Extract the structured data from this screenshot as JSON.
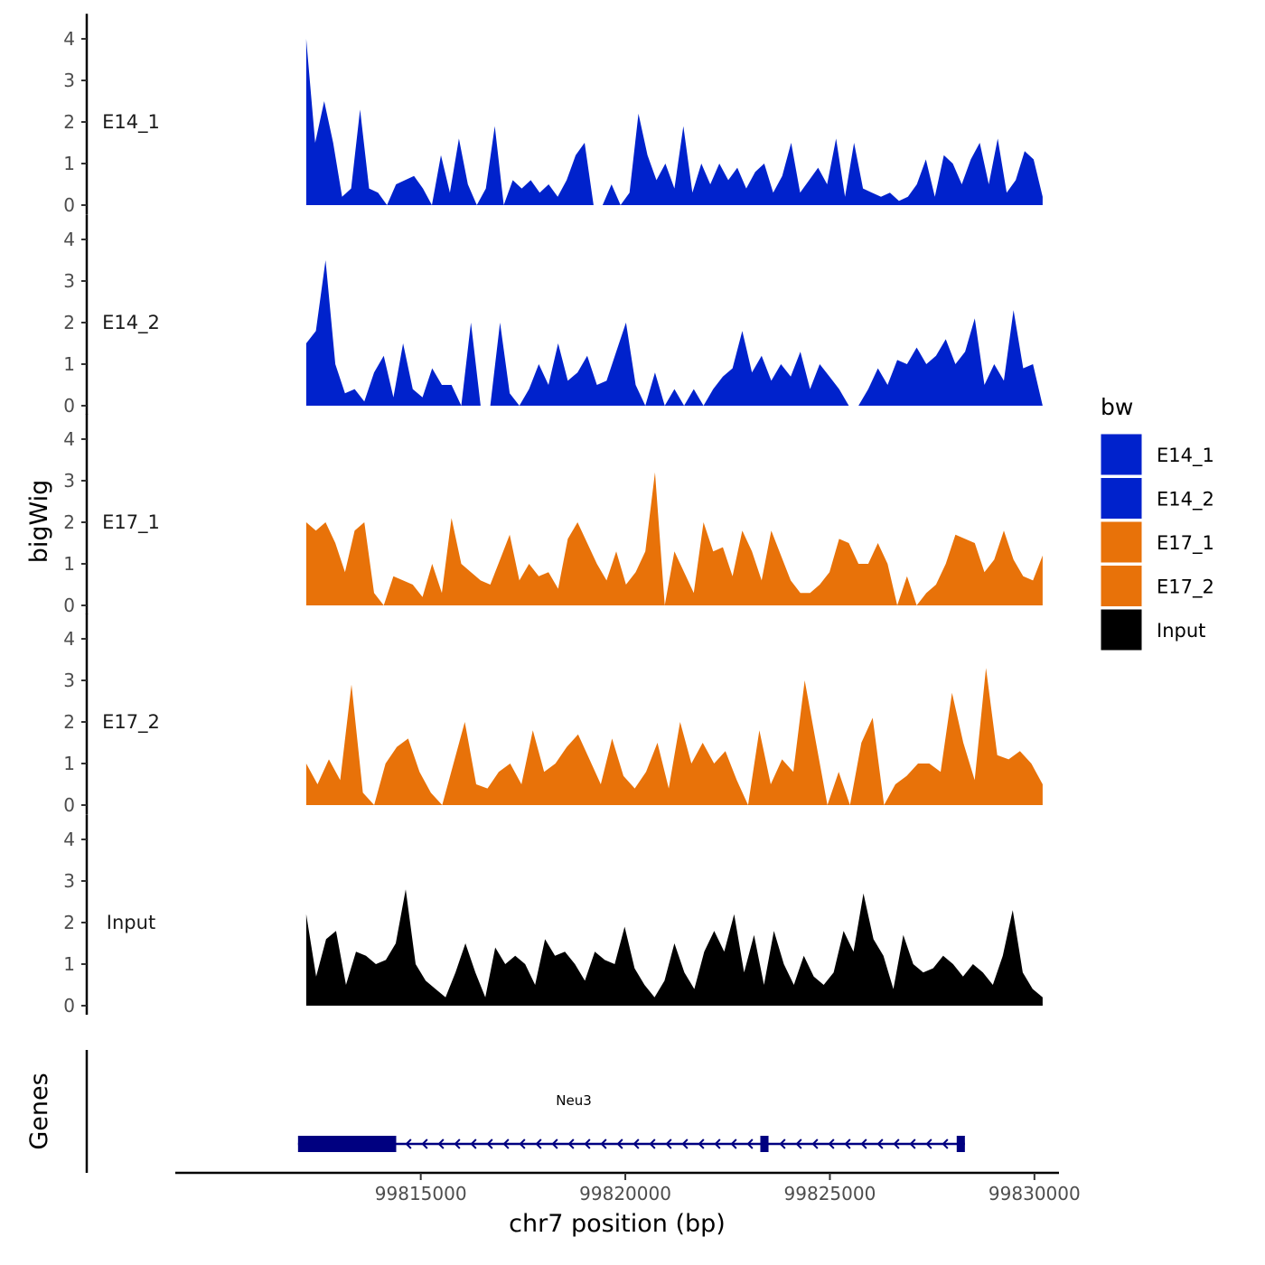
{
  "chart_data": {
    "type": "area",
    "xlabel": "chr7 position (bp)",
    "ylabel": "bigWig",
    "genes_label": "Genes",
    "xlim": [
      99809000,
      99830600
    ],
    "x_ticks": [
      99815000,
      99820000,
      99825000,
      99830000
    ],
    "x_tick_labels": [
      "99815000",
      "99820000",
      "99825000",
      "99830000"
    ],
    "ylim": [
      0,
      4.3
    ],
    "y_ticks": [
      0,
      1,
      2,
      3,
      4
    ],
    "y_tick_labels": [
      "0",
      "1",
      "2",
      "3",
      "4"
    ],
    "colors": {
      "E14_1": "#0022CC",
      "E14_2": "#0022CC",
      "E17_1": "#E87209",
      "E17_2": "#E87209",
      "Input": "#000000",
      "gene": "#000080",
      "axis": "#000000"
    },
    "legend": {
      "title": "bw",
      "position": "right",
      "entries": [
        "E14_1",
        "E14_2",
        "E17_1",
        "E17_2",
        "Input"
      ]
    },
    "series": [
      {
        "name": "E14_1",
        "x_start": 99812200,
        "x_end": 99830200,
        "values": [
          4.0,
          1.5,
          2.5,
          1.5,
          0.2,
          0.4,
          2.3,
          0.4,
          0.3,
          0.0,
          0.5,
          0.6,
          0.7,
          0.4,
          0.0,
          1.2,
          0.3,
          1.6,
          0.5,
          0.0,
          0.4,
          1.9,
          0.0,
          0.6,
          0.4,
          0.6,
          0.3,
          0.5,
          0.2,
          0.6,
          1.2,
          1.5,
          0.0,
          0.0,
          0.5,
          0.0,
          0.3,
          2.2,
          1.2,
          0.6,
          1.0,
          0.4,
          1.9,
          0.3,
          1.0,
          0.5,
          1.0,
          0.6,
          0.9,
          0.4,
          0.8,
          1.0,
          0.3,
          0.7,
          1.5,
          0.3,
          0.6,
          0.9,
          0.5,
          1.6,
          0.2,
          1.5,
          0.4,
          0.3,
          0.2,
          0.3,
          0.1,
          0.2,
          0.5,
          1.1,
          0.2,
          1.2,
          1.0,
          0.5,
          1.1,
          1.5,
          0.5,
          1.6,
          0.3,
          0.6,
          1.3,
          1.1,
          0.2
        ]
      },
      {
        "name": "E14_2",
        "x_start": 99812200,
        "x_end": 99830200,
        "values": [
          1.5,
          1.8,
          3.5,
          1.0,
          0.3,
          0.4,
          0.1,
          0.8,
          1.2,
          0.2,
          1.5,
          0.4,
          0.2,
          0.9,
          0.5,
          0.5,
          0.0,
          2.0,
          0.0,
          0.0,
          2.0,
          0.3,
          0.0,
          0.4,
          1.0,
          0.5,
          1.5,
          0.6,
          0.8,
          1.2,
          0.5,
          0.6,
          1.3,
          2.0,
          0.5,
          0.0,
          0.8,
          0.0,
          0.4,
          0.0,
          0.4,
          0.0,
          0.4,
          0.7,
          0.9,
          1.8,
          0.8,
          1.2,
          0.6,
          1.0,
          0.7,
          1.3,
          0.4,
          1.0,
          0.7,
          0.4,
          0.0,
          0.0,
          0.4,
          0.9,
          0.5,
          1.1,
          1.0,
          1.4,
          1.0,
          1.2,
          1.6,
          1.0,
          1.3,
          2.1,
          0.5,
          1.0,
          0.6,
          2.3,
          0.9,
          1.0,
          0.0
        ]
      },
      {
        "name": "E17_1",
        "x_start": 99812200,
        "x_end": 99830200,
        "values": [
          2.0,
          1.8,
          2.0,
          1.5,
          0.8,
          1.8,
          2.0,
          0.3,
          0.0,
          0.7,
          0.6,
          0.5,
          0.2,
          1.0,
          0.3,
          2.1,
          1.0,
          0.8,
          0.6,
          0.5,
          1.1,
          1.7,
          0.6,
          1.0,
          0.7,
          0.8,
          0.4,
          1.6,
          2.0,
          1.5,
          1.0,
          0.6,
          1.3,
          0.5,
          0.8,
          1.3,
          3.2,
          0.0,
          1.3,
          0.8,
          0.3,
          2.0,
          1.3,
          1.4,
          0.7,
          1.8,
          1.3,
          0.6,
          1.8,
          1.2,
          0.6,
          0.3,
          0.3,
          0.5,
          0.8,
          1.6,
          1.5,
          1.0,
          1.0,
          1.5,
          1.0,
          0.0,
          0.7,
          0.0,
          0.3,
          0.5,
          1.0,
          1.7,
          1.6,
          1.5,
          0.8,
          1.1,
          1.8,
          1.1,
          0.7,
          0.6,
          1.2
        ]
      },
      {
        "name": "E17_2",
        "x_start": 99812200,
        "x_end": 99830200,
        "values": [
          1.0,
          0.5,
          1.1,
          0.6,
          2.9,
          0.3,
          0.0,
          1.0,
          1.4,
          1.6,
          0.8,
          0.3,
          0.0,
          1.0,
          2.0,
          0.5,
          0.4,
          0.8,
          1.0,
          0.5,
          1.8,
          0.8,
          1.0,
          1.4,
          1.7,
          1.1,
          0.5,
          1.6,
          0.7,
          0.4,
          0.8,
          1.5,
          0.4,
          2.0,
          1.0,
          1.5,
          1.0,
          1.3,
          0.6,
          0.0,
          1.8,
          0.5,
          1.1,
          0.8,
          3.0,
          1.5,
          0.0,
          0.8,
          0.0,
          1.5,
          2.1,
          0.0,
          0.5,
          0.7,
          1.0,
          1.0,
          0.8,
          2.7,
          1.5,
          0.6,
          3.3,
          1.2,
          1.1,
          1.3,
          1.0,
          0.5
        ]
      },
      {
        "name": "Input",
        "x_start": 99812200,
        "x_end": 99830200,
        "values": [
          2.2,
          0.7,
          1.6,
          1.8,
          0.5,
          1.3,
          1.2,
          1.0,
          1.1,
          1.5,
          2.8,
          1.0,
          0.6,
          0.4,
          0.2,
          0.8,
          1.5,
          0.8,
          0.2,
          1.4,
          1.0,
          1.2,
          1.0,
          0.5,
          1.6,
          1.2,
          1.3,
          1.0,
          0.6,
          1.3,
          1.1,
          1.0,
          1.9,
          0.9,
          0.5,
          0.2,
          0.6,
          1.5,
          0.8,
          0.4,
          1.3,
          1.8,
          1.3,
          2.2,
          0.8,
          1.7,
          0.5,
          1.8,
          1.0,
          0.5,
          1.2,
          0.7,
          0.5,
          0.8,
          1.8,
          1.3,
          2.7,
          1.6,
          1.2,
          0.4,
          1.7,
          1.0,
          0.8,
          0.9,
          1.2,
          1.0,
          0.7,
          1.0,
          0.8,
          0.5,
          1.2,
          2.3,
          0.8,
          0.4,
          0.2
        ]
      }
    ],
    "gene": {
      "name": "Neu3",
      "x_start": 99812000,
      "x_end": 99828300,
      "strand": "-",
      "exons": [
        [
          99812000,
          99814400
        ],
        [
          99823300,
          99823500
        ],
        [
          99828100,
          99828300
        ]
      ]
    }
  }
}
